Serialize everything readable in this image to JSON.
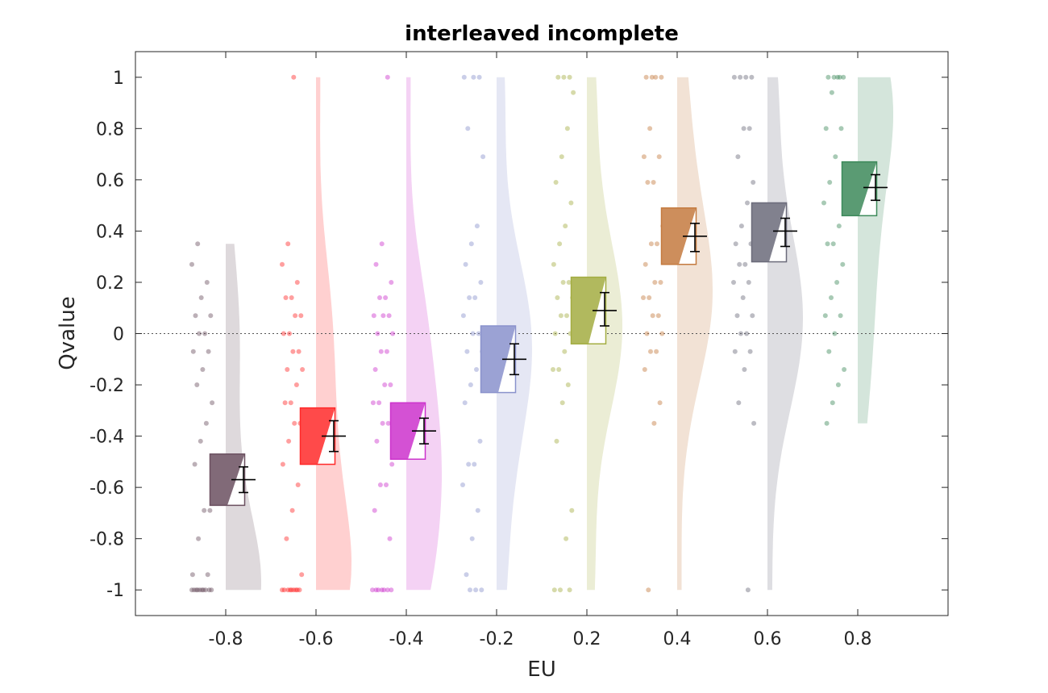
{
  "chart_data": {
    "type": "raincloud",
    "title": "interleaved incomplete",
    "xlabel": "EU",
    "ylabel": "Qvalue",
    "ylim": [
      -1.1,
      1.1
    ],
    "yticks": [
      "-1",
      "-0.8",
      "-0.6",
      "-0.4",
      "-0.2",
      "0",
      "0.2",
      "0.4",
      "0.6",
      "0.8",
      "1"
    ],
    "grid": false,
    "zero_reference_line": true,
    "categories": [
      "-0.8",
      "-0.6",
      "-0.4",
      "-0.2",
      "0.2",
      "0.4",
      "0.6",
      "0.8"
    ],
    "groups": [
      {
        "category": "-0.8",
        "color": "#6b5060",
        "mean": -0.57,
        "box_low": -0.67,
        "box_high": -0.47,
        "err_low": -0.62,
        "err_high": -0.52,
        "density_peak": -1.0,
        "density_range": [
          -1.0,
          0.35
        ],
        "points": [
          -1,
          -1,
          -1,
          -1,
          -1,
          -1,
          -1,
          -1,
          -1,
          -1,
          -0.94,
          -0.94,
          -0.8,
          -0.69,
          -0.69,
          -0.51,
          -0.42,
          -0.35,
          -0.27,
          -0.2,
          -0.14,
          -0.07,
          -0.07,
          0,
          0,
          0.07,
          0.07,
          0.14,
          0.2,
          0.27,
          0.35
        ]
      },
      {
        "category": "-0.6",
        "color": "#ff2a2a",
        "mean": -0.4,
        "box_low": -0.51,
        "box_high": -0.29,
        "err_low": -0.46,
        "err_high": -0.34,
        "density_peak": -0.85,
        "density_range": [
          -1.0,
          1.0
        ],
        "points": [
          -1,
          -1,
          -1,
          -1,
          -1,
          -1,
          -1,
          -1,
          -1,
          -0.94,
          -0.8,
          -0.69,
          -0.59,
          -0.51,
          -0.42,
          -0.35,
          -0.35,
          -0.27,
          -0.27,
          -0.2,
          -0.14,
          -0.14,
          -0.07,
          -0.07,
          0,
          0,
          0.07,
          0.07,
          0.14,
          0.14,
          0.2,
          0.27,
          0.35,
          1
        ]
      },
      {
        "category": "-0.4",
        "color": "#cc33cc",
        "mean": -0.38,
        "box_low": -0.49,
        "box_high": -0.27,
        "err_low": -0.43,
        "err_high": -0.33,
        "density_peak": -0.6,
        "density_range": [
          -1.0,
          1.0
        ],
        "points": [
          -1,
          -1,
          -1,
          -1,
          -1,
          -1,
          -1,
          -0.8,
          -0.69,
          -0.59,
          -0.59,
          -0.51,
          -0.42,
          -0.35,
          -0.35,
          -0.27,
          -0.27,
          -0.2,
          -0.2,
          -0.14,
          -0.07,
          -0.07,
          0,
          0,
          0.07,
          0.07,
          0.07,
          0.14,
          0.14,
          0.2,
          0.27,
          0.35,
          1
        ]
      },
      {
        "category": "-0.2",
        "color": "#8a92cc",
        "mean": -0.1,
        "box_low": -0.23,
        "box_high": 0.03,
        "err_low": -0.16,
        "err_high": -0.04,
        "density_peak": -0.1,
        "density_range": [
          -1.0,
          1.0
        ],
        "points": [
          -1,
          -1,
          -1,
          -0.94,
          -0.8,
          -0.69,
          -0.59,
          -0.51,
          -0.51,
          -0.42,
          -0.27,
          -0.2,
          -0.14,
          -0.07,
          -0.07,
          0,
          0,
          0.07,
          0.14,
          0.14,
          0.2,
          0.27,
          0.35,
          0.42,
          0.69,
          0.8,
          1,
          1,
          1
        ]
      },
      {
        "category": "0.2",
        "color": "#a3ad42",
        "mean": 0.09,
        "box_low": -0.04,
        "box_high": 0.22,
        "err_low": 0.03,
        "err_high": 0.16,
        "density_peak": 0.0,
        "density_range": [
          -1.0,
          1.0
        ],
        "points": [
          -1,
          -1,
          -1,
          -0.8,
          -0.69,
          -0.42,
          -0.27,
          -0.2,
          -0.14,
          -0.14,
          -0.07,
          0,
          0,
          0.07,
          0.07,
          0.14,
          0.14,
          0.2,
          0.2,
          0.27,
          0.35,
          0.42,
          0.51,
          0.59,
          0.69,
          0.8,
          0.94,
          1,
          1,
          1
        ]
      },
      {
        "category": "0.4",
        "color": "#c47a3f",
        "mean": 0.38,
        "box_low": 0.27,
        "box_high": 0.49,
        "err_low": 0.32,
        "err_high": 0.43,
        "density_peak": 0.2,
        "density_range": [
          -1.0,
          1.0
        ],
        "points": [
          -1,
          -0.35,
          -0.27,
          -0.14,
          -0.07,
          -0.07,
          0,
          0,
          0.07,
          0.07,
          0.14,
          0.14,
          0.2,
          0.2,
          0.27,
          0.35,
          0.35,
          0.42,
          0.59,
          0.59,
          0.69,
          0.69,
          0.8,
          1,
          1,
          1,
          1
        ]
      },
      {
        "category": "0.6",
        "color": "#6b6b7a",
        "mean": 0.4,
        "box_low": 0.28,
        "box_high": 0.51,
        "err_low": 0.34,
        "err_high": 0.45,
        "density_peak": 0.0,
        "density_range": [
          -1.0,
          1.0
        ],
        "points": [
          -1,
          -0.35,
          -0.27,
          -0.14,
          -0.07,
          -0.07,
          0,
          0,
          0.07,
          0.07,
          0.14,
          0.2,
          0.2,
          0.27,
          0.27,
          0.35,
          0.35,
          0.42,
          0.51,
          0.59,
          0.69,
          0.8,
          0.8,
          1,
          1,
          1,
          1
        ]
      },
      {
        "category": "0.8",
        "color": "#3d8a5a",
        "mean": 0.57,
        "box_low": 0.46,
        "box_high": 0.67,
        "err_low": 0.52,
        "err_high": 0.62,
        "density_peak": 0.85,
        "density_range": [
          -0.35,
          1.0
        ],
        "points": [
          -0.35,
          -0.27,
          -0.2,
          -0.14,
          -0.07,
          0,
          0.07,
          0.07,
          0.14,
          0.2,
          0.27,
          0.35,
          0.35,
          0.42,
          0.51,
          0.59,
          0.69,
          0.8,
          0.8,
          0.94,
          1,
          1,
          1,
          1,
          1
        ]
      }
    ]
  }
}
